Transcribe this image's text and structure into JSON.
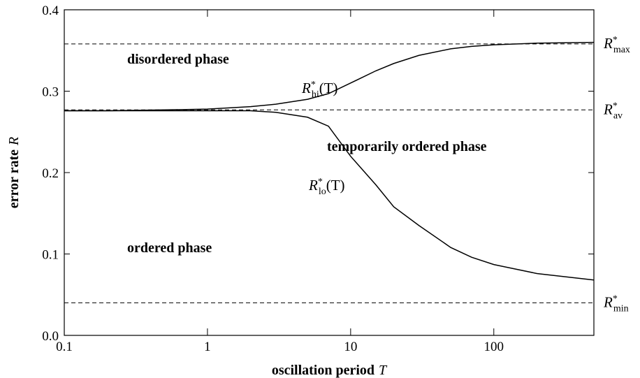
{
  "chart_data": {
    "type": "line",
    "xlabel": {
      "text": "oscillation period",
      "var": "T"
    },
    "ylabel": {
      "text": "error rate",
      "var": "R"
    },
    "xscale": "log",
    "xlim": [
      0.1,
      500
    ],
    "ylim": [
      0,
      0.4
    ],
    "xticks": [
      0.1,
      1,
      10,
      100
    ],
    "yticks": [
      {
        "value": 0,
        "label": "0.0"
      },
      0.1,
      0.2,
      0.3,
      0.4
    ],
    "x": [
      0.1,
      0.2,
      0.5,
      1,
      2,
      3,
      5,
      7,
      10,
      15,
      20,
      30,
      50,
      70,
      100,
      200,
      500
    ],
    "series": [
      {
        "color": "#000000",
        "label": {
          "text": "R",
          "sup": "*",
          "sub": "hi",
          "suffix": "(T)"
        },
        "values": [
          0.276,
          0.276,
          0.277,
          0.278,
          0.281,
          0.284,
          0.29,
          0.297,
          0.31,
          0.325,
          0.334,
          0.344,
          0.352,
          0.355,
          0.357,
          0.359,
          0.36
        ]
      },
      {
        "color": "#000000",
        "label": {
          "text": "R",
          "sup": "*",
          "sub": "lo",
          "suffix": "(T)"
        },
        "values": [
          0.276,
          0.276,
          0.276,
          0.276,
          0.276,
          0.274,
          0.268,
          0.257,
          0.22,
          0.185,
          0.158,
          0.135,
          0.108,
          0.096,
          0.087,
          0.076,
          0.068
        ]
      }
    ],
    "reference_lines": [
      {
        "value": 0.358,
        "label": {
          "text": "R",
          "sup": "*",
          "sub": "max"
        }
      },
      {
        "value": 0.277,
        "label": {
          "text": "R",
          "sup": "*",
          "sub": "av"
        }
      },
      {
        "value": 0.04,
        "label": {
          "text": "R",
          "sup": "*",
          "sub": "min"
        }
      }
    ],
    "annotations": [
      "disordered phase",
      "temporarily ordered phase",
      "ordered phase"
    ]
  }
}
